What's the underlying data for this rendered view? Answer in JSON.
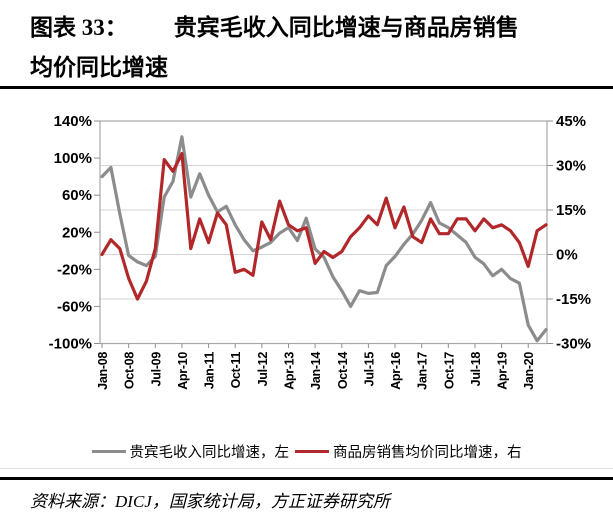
{
  "header": {
    "figure_label": "图表 33：",
    "title_rest_line1": "贵宾毛收入同比增速与商品房销售",
    "title_line2": "均价同比增速"
  },
  "colors": {
    "vip_line": "#8C8C8C",
    "housing_line": "#B2282A",
    "grid": "#D4D4D4",
    "plot_border": "#A8A8A8",
    "tick": "#8F8F8F"
  },
  "chart_data": {
    "type": "line",
    "x_start": "2008Q1",
    "x_freq": "quarterly",
    "x_axis": {
      "labels": [
        "Jan-08",
        "Oct-08",
        "Jul-09",
        "Apr-10",
        "Jan-11",
        "Oct-11",
        "Jul-12",
        "Apr-13",
        "Jan-14",
        "Oct-14",
        "Jul-15",
        "Apr-16",
        "Jan-17",
        "Oct-17",
        "Jul-18",
        "Apr-19",
        "Jan-20"
      ],
      "label_every_n_points": 3
    },
    "left_axis": {
      "ticks": [
        "140%",
        "100%",
        "60%",
        "20%",
        "-20%",
        "-60%",
        "-100%"
      ],
      "max": 140,
      "min": -100
    },
    "right_axis": {
      "ticks": [
        "45%",
        "30%",
        "15%",
        "0%",
        "-15%",
        "-30%"
      ],
      "max": 45,
      "min": -30
    },
    "grid": "horizontal",
    "legend_position": "bottom",
    "series": [
      {
        "name": "贵宾毛收入同比增速，左",
        "axis": "left",
        "color": "#8C8C8C",
        "values": [
          80,
          90,
          40,
          -5,
          -12,
          -16,
          -6,
          58,
          75,
          123,
          58,
          83,
          60,
          42,
          48,
          28,
          12,
          0,
          4,
          9,
          19,
          25,
          11,
          35,
          2,
          -7,
          -28,
          -43,
          -60,
          -43,
          -46,
          -45,
          -16,
          -6,
          7,
          18,
          33,
          52,
          30,
          25,
          17,
          9,
          -7,
          -14,
          -27,
          -20,
          -30,
          -35,
          -80,
          -97,
          -85
        ]
      },
      {
        "name": "商品房销售均价同比增速，右",
        "axis": "right",
        "color": "#B2282A",
        "values": [
          0,
          5,
          2,
          -8,
          -15,
          -9,
          2,
          32,
          28,
          34,
          2,
          12,
          4,
          14,
          10,
          -6,
          -5,
          -7,
          11,
          5,
          18,
          10,
          8,
          9,
          -3,
          1,
          -1,
          1,
          6,
          9,
          13,
          10,
          19,
          9,
          16,
          6,
          4,
          12,
          7,
          7,
          12,
          12,
          8,
          12,
          9,
          10,
          8,
          4,
          -4,
          8,
          10
        ]
      }
    ]
  },
  "source": {
    "text": "资料来源：DICJ，国家统计局，方正证券研究所"
  }
}
